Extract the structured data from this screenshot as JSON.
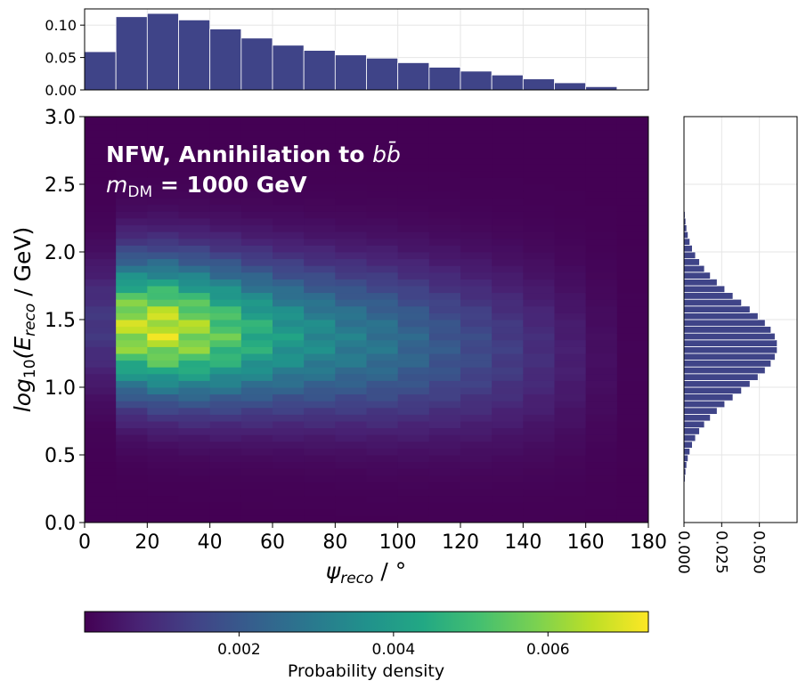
{
  "chart_data": [
    {
      "id": "top_marginal",
      "type": "bar",
      "description_axis": "psi_reco marginal",
      "bin_edges": [
        0,
        10,
        20,
        30,
        40,
        50,
        60,
        70,
        80,
        90,
        100,
        110,
        120,
        130,
        140,
        150,
        160,
        170,
        180
      ],
      "values": [
        0.059,
        0.113,
        0.118,
        0.108,
        0.094,
        0.08,
        0.069,
        0.061,
        0.054,
        0.049,
        0.042,
        0.035,
        0.029,
        0.023,
        0.017,
        0.011,
        0.005,
        0.001
      ],
      "xlim": [
        0,
        180
      ],
      "ylim": [
        0,
        0.125
      ],
      "yticks": [
        "0.00",
        "0.05",
        "0.10"
      ],
      "ytick_values": [
        0,
        0.05,
        0.1
      ],
      "color": "#3f4488",
      "grid": true
    },
    {
      "id": "main_heatmap",
      "type": "heatmap",
      "title_line1": "NFW, Annihilation to ",
      "title_line1_math": "bb̄",
      "title_line2_math": "m",
      "title_line2_sub": "DM",
      "title_line2_rest": " = 1000 GeV",
      "xlabel": "ψ",
      "xlabel_sub": "reco",
      "xlabel_unit": " / °",
      "ylabel": "log",
      "ylabel_sub1": "10",
      "ylabel_mid": "(E",
      "ylabel_sub2": "reco",
      "ylabel_unit": " / GeV)",
      "xlim": [
        0,
        180
      ],
      "ylim": [
        0,
        3.0
      ],
      "xticks": [
        "0",
        "20",
        "40",
        "60",
        "80",
        "100",
        "120",
        "140",
        "160",
        "180"
      ],
      "xtick_values": [
        0,
        20,
        40,
        60,
        80,
        100,
        120,
        140,
        160,
        180
      ],
      "yticks": [
        "0.0",
        "0.5",
        "1.0",
        "1.5",
        "2.0",
        "2.5",
        "3.0"
      ],
      "ytick_values": [
        0,
        0.5,
        1.0,
        1.5,
        2.0,
        2.5,
        3.0
      ],
      "x_bin_edges": [
        0,
        10,
        20,
        30,
        40,
        50,
        60,
        70,
        80,
        90,
        100,
        110,
        120,
        130,
        140,
        150,
        160,
        170,
        180
      ],
      "y_bin_width": 0.05,
      "y_row_range": [
        0,
        3.0
      ],
      "energy_peak": 1.35,
      "energy_spread": 0.33,
      "vmax": 0.0073
    },
    {
      "id": "right_marginal",
      "type": "bar",
      "orientation": "horizontal",
      "description_axis": "log10(E_reco) marginal",
      "y_bin_edges_range": [
        0.2,
        2.5
      ],
      "y_bin_width": 0.05,
      "peak_center": 1.3,
      "peak_value": 0.062,
      "spread": 0.33,
      "xlim": [
        0,
        0.075
      ],
      "xticks": [
        "0.000",
        "0.025",
        "0.050"
      ],
      "xtick_values": [
        0,
        0.025,
        0.05
      ],
      "color": "#3f4488",
      "grid": true
    },
    {
      "id": "colorbar",
      "type": "colorbar",
      "label": "Probability density",
      "vmin": 0,
      "vmax": 0.0073,
      "ticks": [
        "0.002",
        "0.004",
        "0.006"
      ],
      "tick_values": [
        0.002,
        0.004,
        0.006
      ],
      "colormap": "viridis"
    }
  ]
}
